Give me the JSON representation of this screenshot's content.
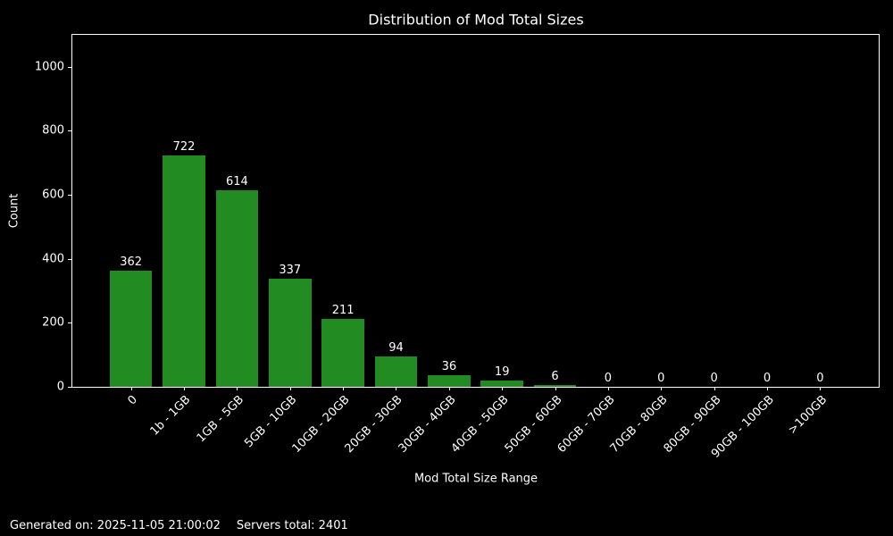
{
  "title": "Distribution of Mod Total Sizes",
  "chart_data": {
    "type": "bar",
    "title": "Distribution of Mod Total Sizes",
    "xlabel": "Mod Total Size Range",
    "ylabel": "Count",
    "categories": [
      "0",
      "1b - 1GB",
      "1GB - 5GB",
      "5GB - 10GB",
      "10GB - 20GB",
      "20GB - 30GB",
      "30GB - 40GB",
      "40GB - 50GB",
      "50GB - 60GB",
      "60GB - 70GB",
      "70GB - 80GB",
      "80GB - 90GB",
      "90GB - 100GB",
      ">100GB"
    ],
    "values": [
      362,
      722,
      614,
      337,
      211,
      94,
      36,
      19,
      6,
      0,
      0,
      0,
      0,
      0
    ],
    "yticks": [
      0,
      200,
      400,
      600,
      800,
      1000
    ],
    "ylim": [
      0,
      1100
    ],
    "bar_color": "#228B22",
    "background_color": "#000000",
    "text_color": "#ffffff",
    "grid": false,
    "legend": "none",
    "bar_value_labels_shown": true,
    "xtick_rotation_deg": 45
  },
  "footer": {
    "generated": "Generated on: 2025-11-05 21:00:02",
    "servers_total": "Servers total: 2401"
  }
}
